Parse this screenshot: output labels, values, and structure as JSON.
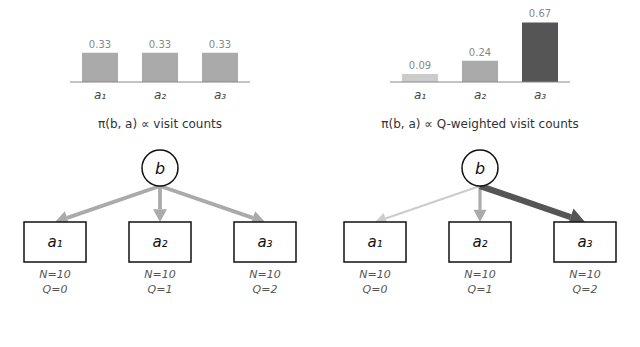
{
  "chart_data": [
    {
      "type": "bar",
      "title": "π(b, a) ∝ visit counts",
      "categories": [
        "a₁",
        "a₂",
        "a₃"
      ],
      "values": [
        0.33,
        0.33,
        0.33
      ],
      "color": "#aaaaaa",
      "ylim": [
        0,
        0.72
      ],
      "data_labels": true,
      "tick_labels": "x",
      "grid": false,
      "annotations": [
        "b",
        "a₁",
        "N=10",
        "Q=0",
        "a₂",
        "N=10",
        "Q=1",
        "a₃",
        "N=10",
        "Q=2"
      ]
    },
    {
      "type": "bar",
      "title": "π(b, a) ∝ Q-weighted visit counts",
      "categories": [
        "a₁",
        "a₂",
        "a₃"
      ],
      "values": [
        0.09,
        0.24,
        0.67
      ],
      "colors": [
        "#cccccc",
        "#aaaaaa",
        "#555555"
      ],
      "ylim": [
        0,
        0.72
      ],
      "data_labels": true,
      "tick_labels": "x",
      "grid": false,
      "annotations": [
        "b",
        "a₁",
        "N=10",
        "Q=0",
        "a₂",
        "N=10",
        "Q=1",
        "a₃",
        "N=10",
        "Q=2"
      ]
    }
  ]
}
